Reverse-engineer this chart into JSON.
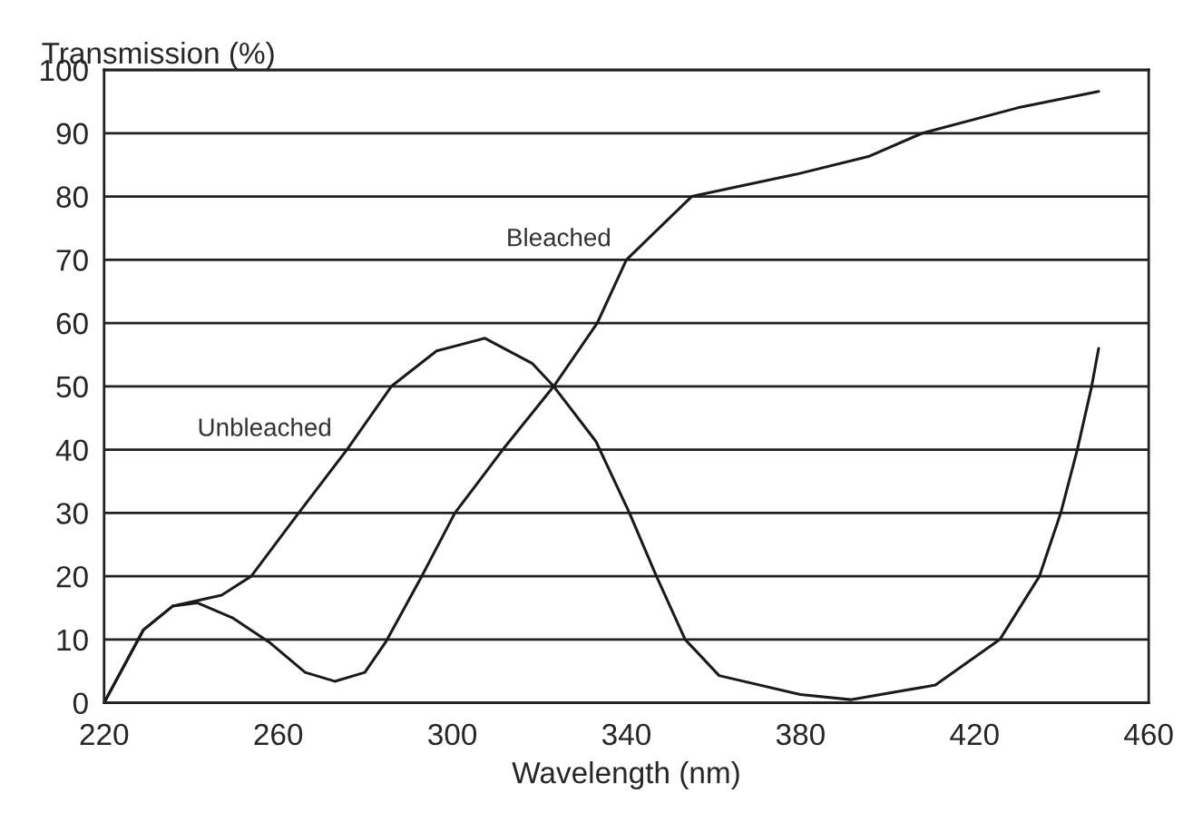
{
  "chart_data": {
    "type": "line",
    "xlabel": "Wavelength (nm)",
    "ylabel": "Transmission (%)",
    "xlim": [
      220,
      460
    ],
    "xticks": [
      220,
      260,
      300,
      340,
      380,
      420,
      460
    ],
    "ylim": [
      0,
      100
    ],
    "yticks": [
      0,
      10,
      20,
      30,
      40,
      50,
      60,
      70,
      80,
      90,
      100
    ],
    "grid": "y",
    "marker": "none",
    "line_style": "solid",
    "series": [
      {
        "name": "Unbleached",
        "color": "#1a1a1a",
        "x": [
          220,
          229,
          235.8,
          247,
          253.8,
          264.7,
          275.8,
          286,
          296.4,
          307.5,
          318.4,
          323.3,
          333,
          340.7,
          346.9,
          353.5,
          361.3,
          380,
          391.5,
          411,
          425.8,
          434.9,
          439.8,
          443.6,
          446.9,
          448.5
        ],
        "values": [
          0,
          11.5,
          15.3,
          17,
          20,
          30,
          40,
          50,
          55.6,
          57.6,
          53.6,
          50,
          41.3,
          30,
          20,
          10,
          4.3,
          1.3,
          0.5,
          2.8,
          10,
          20,
          30,
          40,
          50,
          56
        ]
      },
      {
        "name": "Bleached",
        "color": "#1a1a1a",
        "x": [
          220,
          229,
          235.8,
          241.4,
          249.6,
          257.9,
          266.2,
          273,
          279.9,
          284.7,
          293,
          300.6,
          311.6,
          323.3,
          333.3,
          340,
          355,
          379,
          395.6,
          408,
          429.9,
          448.5
        ],
        "values": [
          0,
          11.5,
          15.3,
          15.8,
          13.4,
          9.6,
          4.8,
          3.4,
          4.8,
          9.6,
          20,
          30,
          40,
          50,
          60,
          70,
          80,
          83.5,
          86.3,
          90,
          94,
          96.6
        ]
      }
    ]
  }
}
